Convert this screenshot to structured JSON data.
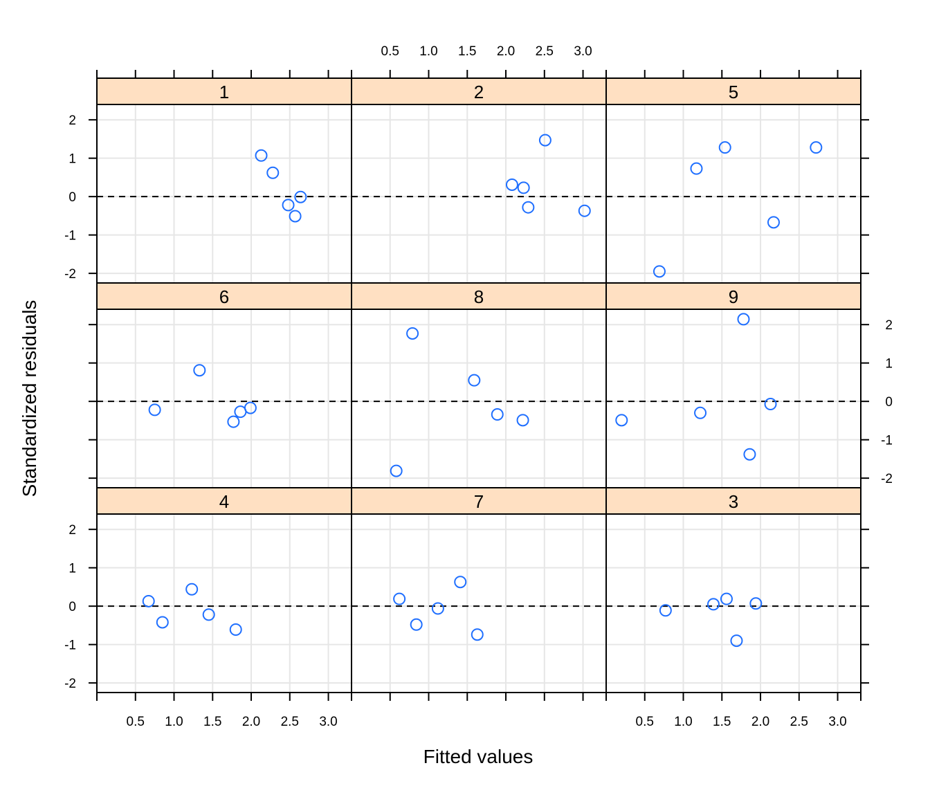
{
  "chart_data": {
    "type": "scatter",
    "title": "",
    "xlabel": "Fitted values",
    "ylabel": "Standardized residuals",
    "xlim": [
      0.0,
      3.3
    ],
    "ylim": [
      -2.25,
      2.4
    ],
    "x_ticks": [
      0.5,
      1.0,
      1.5,
      2.0,
      2.5,
      3.0
    ],
    "x_tick_labels": [
      "0.5",
      "1.0",
      "1.5",
      "2.0",
      "2.5",
      "3.0"
    ],
    "y_ticks": [
      -2,
      -1,
      0,
      1,
      2
    ],
    "y_tick_labels": [
      "-2",
      "-1",
      "0",
      "1",
      "2"
    ],
    "grid": true,
    "reference_line_y": 0,
    "strip_color": "#ffe0c2",
    "point_color": "#1f6fff",
    "panels": [
      {
        "label": "1",
        "x": [
          2.13,
          2.28,
          2.48,
          2.57,
          2.64
        ],
        "y": [
          1.07,
          0.62,
          -0.22,
          -0.51,
          -0.01
        ]
      },
      {
        "label": "2",
        "x": [
          2.08,
          2.23,
          2.29,
          2.51,
          3.02
        ],
        "y": [
          0.31,
          0.23,
          -0.28,
          1.47,
          -0.37
        ]
      },
      {
        "label": "5",
        "x": [
          0.69,
          1.17,
          1.54,
          2.17,
          2.72
        ],
        "y": [
          -1.95,
          0.73,
          1.28,
          -0.67,
          1.28
        ]
      },
      {
        "label": "6",
        "x": [
          0.75,
          1.33,
          1.77,
          1.86,
          1.99
        ],
        "y": [
          -0.22,
          0.81,
          -0.53,
          -0.27,
          -0.17
        ]
      },
      {
        "label": "8",
        "x": [
          0.58,
          0.79,
          1.59,
          1.89,
          2.22
        ],
        "y": [
          -1.81,
          1.77,
          0.55,
          -0.34,
          -0.49
        ]
      },
      {
        "label": "9",
        "x": [
          0.2,
          1.22,
          1.78,
          1.86,
          2.13
        ],
        "y": [
          -0.49,
          -0.3,
          2.14,
          -1.38,
          -0.07
        ]
      },
      {
        "label": "4",
        "x": [
          0.67,
          0.85,
          1.23,
          1.45,
          1.8
        ],
        "y": [
          0.13,
          -0.42,
          0.44,
          -0.22,
          -0.61
        ]
      },
      {
        "label": "7",
        "x": [
          0.62,
          0.84,
          1.12,
          1.41,
          1.63
        ],
        "y": [
          0.19,
          -0.48,
          -0.06,
          0.63,
          -0.74
        ]
      },
      {
        "label": "3",
        "x": [
          0.77,
          1.39,
          1.56,
          1.69,
          1.94
        ],
        "y": [
          -0.11,
          0.05,
          0.19,
          -0.9,
          0.07
        ]
      }
    ]
  }
}
